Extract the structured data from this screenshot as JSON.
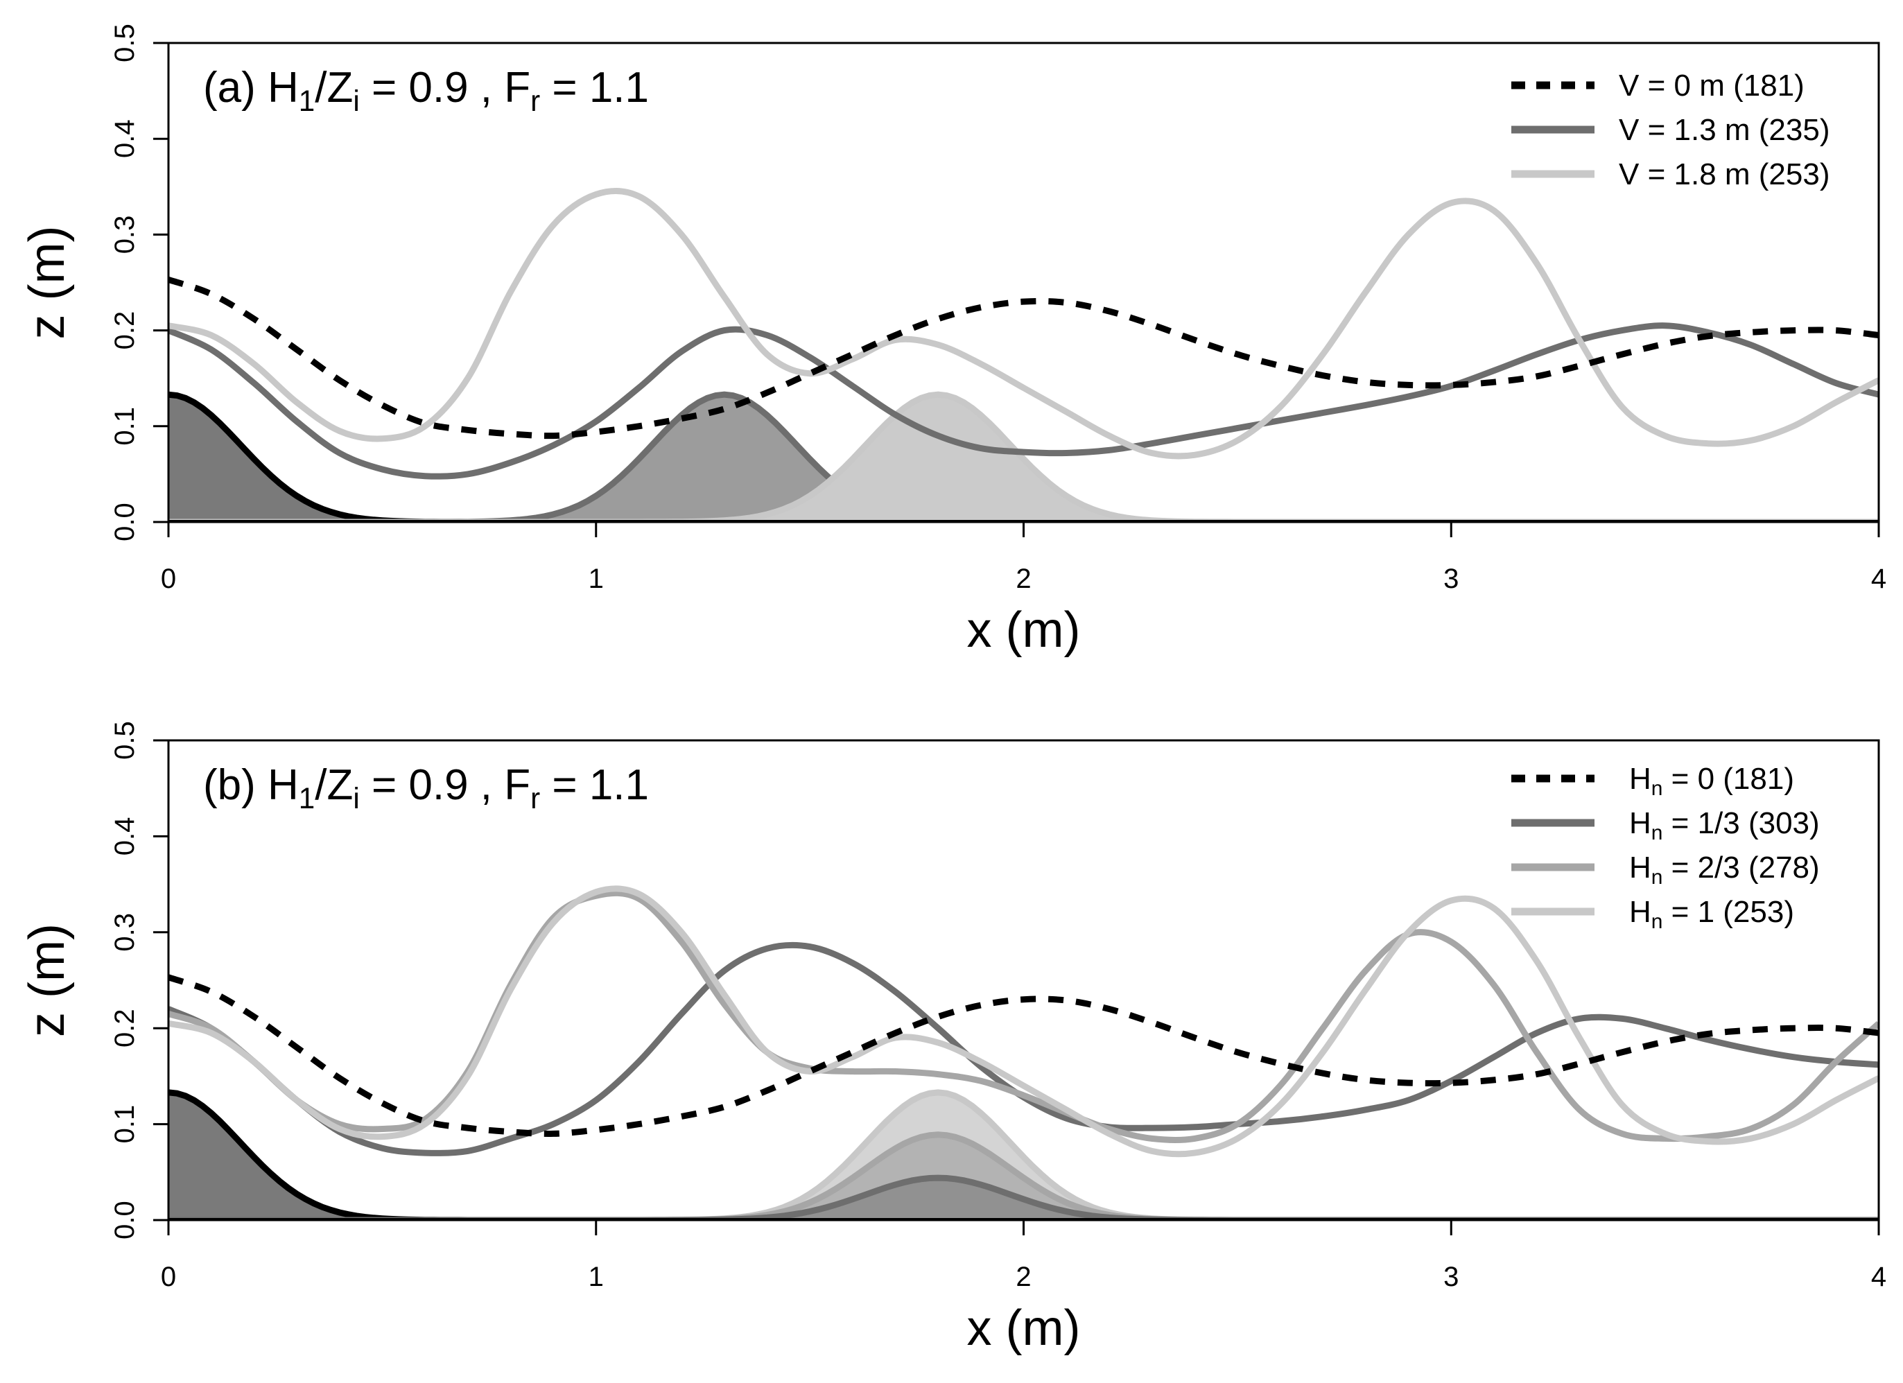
{
  "chart_data": [
    {
      "type": "line",
      "panel_label": "(a)",
      "title_parts": [
        "(a) H",
        "1",
        "/Z",
        "i",
        " = 0.9 , F",
        "r",
        " = 1.1"
      ],
      "xlabel": "x (m)",
      "ylabel": "z (m)",
      "xlim": [
        0,
        4
      ],
      "ylim": [
        0,
        0.5
      ],
      "xticks": [
        0,
        1,
        2,
        3,
        4
      ],
      "yticks": [
        0.0,
        0.1,
        0.2,
        0.3,
        0.4,
        0.5
      ],
      "ytick_labels": [
        "0.0",
        "0.1",
        "0.2",
        "0.3",
        "0.4",
        "0.5"
      ],
      "grid": false,
      "legend_position": "top-right",
      "colors": {
        "black": "#000000",
        "dark": "#6e6e6e",
        "mid": "#a6a6a6",
        "light": "#c8c8c8",
        "fill_black": "#7a7a7a",
        "fill_dark": "#9c9c9c",
        "fill_light": "#cbcbcb"
      },
      "topography": [
        {
          "name": "hill-x0",
          "x_center": 0.0,
          "height": 0.133,
          "width": 0.25,
          "fill": "#7a7a7a",
          "stroke": "#000000"
        },
        {
          "name": "hill-x1.3",
          "x_center": 1.3,
          "height": 0.133,
          "width": 0.25,
          "fill": "#9c9c9c",
          "stroke": "#6e6e6e"
        },
        {
          "name": "hill-x1.8",
          "x_center": 1.8,
          "height": 0.133,
          "width": 0.25,
          "fill": "#cbcbcb",
          "stroke": "#c8c8c8"
        }
      ],
      "series": [
        {
          "legend_label": [
            "V = 0 m (181)"
          ],
          "color": "#000000",
          "dashed": true,
          "x": [
            0,
            0.1,
            0.2,
            0.3,
            0.4,
            0.5,
            0.6,
            0.7,
            0.8,
            0.9,
            1.0,
            1.1,
            1.2,
            1.3,
            1.4,
            1.5,
            1.6,
            1.7,
            1.8,
            1.9,
            2.0,
            2.1,
            2.2,
            2.3,
            2.4,
            2.5,
            2.6,
            2.7,
            2.8,
            2.9,
            3.0,
            3.1,
            3.2,
            3.3,
            3.4,
            3.5,
            3.6,
            3.7,
            3.8,
            3.9,
            4.0
          ],
          "y": [
            0.253,
            0.238,
            0.212,
            0.18,
            0.148,
            0.122,
            0.103,
            0.096,
            0.092,
            0.09,
            0.094,
            0.1,
            0.108,
            0.118,
            0.135,
            0.155,
            0.175,
            0.195,
            0.212,
            0.224,
            0.23,
            0.229,
            0.22,
            0.206,
            0.19,
            0.175,
            0.163,
            0.153,
            0.146,
            0.143,
            0.143,
            0.146,
            0.152,
            0.163,
            0.175,
            0.186,
            0.194,
            0.198,
            0.2,
            0.2,
            0.195
          ]
        },
        {
          "legend_label": [
            "V = 1.3 m (235)"
          ],
          "color": "#6e6e6e",
          "dashed": false,
          "x": [
            0,
            0.1,
            0.2,
            0.3,
            0.4,
            0.5,
            0.6,
            0.7,
            0.8,
            0.9,
            1.0,
            1.1,
            1.2,
            1.3,
            1.4,
            1.5,
            1.6,
            1.7,
            1.8,
            1.9,
            2.0,
            2.1,
            2.2,
            2.3,
            2.4,
            2.5,
            2.6,
            2.7,
            2.8,
            2.9,
            3.0,
            3.1,
            3.2,
            3.3,
            3.4,
            3.5,
            3.6,
            3.7,
            3.8,
            3.9,
            4.0
          ],
          "y": [
            0.2,
            0.18,
            0.145,
            0.105,
            0.072,
            0.055,
            0.048,
            0.05,
            0.062,
            0.08,
            0.105,
            0.14,
            0.178,
            0.2,
            0.195,
            0.172,
            0.142,
            0.112,
            0.09,
            0.077,
            0.073,
            0.072,
            0.075,
            0.082,
            0.09,
            0.098,
            0.106,
            0.114,
            0.122,
            0.131,
            0.142,
            0.158,
            0.175,
            0.19,
            0.2,
            0.205,
            0.198,
            0.185,
            0.165,
            0.145,
            0.133
          ]
        },
        {
          "legend_label": [
            "V = 1.8 m (253)"
          ],
          "color": "#c8c8c8",
          "dashed": false,
          "x": [
            0,
            0.1,
            0.2,
            0.3,
            0.4,
            0.5,
            0.6,
            0.7,
            0.8,
            0.9,
            1.0,
            1.1,
            1.2,
            1.3,
            1.4,
            1.5,
            1.6,
            1.7,
            1.8,
            1.9,
            2.0,
            2.1,
            2.2,
            2.3,
            2.4,
            2.5,
            2.6,
            2.7,
            2.8,
            2.9,
            3.0,
            3.1,
            3.2,
            3.3,
            3.4,
            3.5,
            3.6,
            3.7,
            3.8,
            3.9,
            4.0
          ],
          "y": [
            0.205,
            0.195,
            0.165,
            0.125,
            0.095,
            0.087,
            0.1,
            0.15,
            0.24,
            0.31,
            0.342,
            0.34,
            0.3,
            0.235,
            0.175,
            0.155,
            0.17,
            0.19,
            0.185,
            0.165,
            0.14,
            0.115,
            0.09,
            0.072,
            0.07,
            0.085,
            0.12,
            0.175,
            0.24,
            0.3,
            0.333,
            0.325,
            0.27,
            0.19,
            0.12,
            0.09,
            0.082,
            0.085,
            0.1,
            0.125,
            0.148
          ]
        }
      ]
    },
    {
      "type": "line",
      "panel_label": "(b)",
      "title_parts": [
        "(b) H",
        "1",
        "/Z",
        "i",
        " = 0.9 , F",
        "r",
        " = 1.1"
      ],
      "xlabel": "x (m)",
      "ylabel": "z (m)",
      "xlim": [
        0,
        4
      ],
      "ylim": [
        0,
        0.5
      ],
      "xticks": [
        0,
        1,
        2,
        3,
        4
      ],
      "yticks": [
        0.0,
        0.1,
        0.2,
        0.3,
        0.4,
        0.5
      ],
      "ytick_labels": [
        "0.0",
        "0.1",
        "0.2",
        "0.3",
        "0.4",
        "0.5"
      ],
      "grid": false,
      "legend_position": "top-right",
      "colors": {
        "black": "#000000",
        "dark": "#6e6e6e",
        "mid": "#a6a6a6",
        "light": "#c8c8c8"
      },
      "topography": [
        {
          "name": "hill-x0",
          "x_center": 0.0,
          "height": 0.133,
          "width": 0.25,
          "fill": "#7a7a7a",
          "stroke": "#000000"
        },
        {
          "name": "hill-hn1",
          "x_center": 1.8,
          "height": 0.133,
          "width": 0.25,
          "fill": "#d4d4d4",
          "stroke": "#c8c8c8"
        },
        {
          "name": "hill-hn2-3",
          "x_center": 1.8,
          "height": 0.089,
          "width": 0.25,
          "fill": "#b3b3b3",
          "stroke": "#a6a6a6"
        },
        {
          "name": "hill-hn1-3",
          "x_center": 1.8,
          "height": 0.044,
          "width": 0.25,
          "fill": "#919191",
          "stroke": "#6e6e6e"
        }
      ],
      "series": [
        {
          "legend_label": [
            "H",
            "n",
            "  = 0 (181)"
          ],
          "color": "#000000",
          "dashed": true,
          "x": [
            0,
            0.1,
            0.2,
            0.3,
            0.4,
            0.5,
            0.6,
            0.7,
            0.8,
            0.9,
            1.0,
            1.1,
            1.2,
            1.3,
            1.4,
            1.5,
            1.6,
            1.7,
            1.8,
            1.9,
            2.0,
            2.1,
            2.2,
            2.3,
            2.4,
            2.5,
            2.6,
            2.7,
            2.8,
            2.9,
            3.0,
            3.1,
            3.2,
            3.3,
            3.4,
            3.5,
            3.6,
            3.7,
            3.8,
            3.9,
            4.0
          ],
          "y": [
            0.253,
            0.238,
            0.212,
            0.18,
            0.148,
            0.122,
            0.103,
            0.096,
            0.092,
            0.09,
            0.094,
            0.1,
            0.108,
            0.118,
            0.135,
            0.155,
            0.175,
            0.195,
            0.212,
            0.224,
            0.23,
            0.229,
            0.22,
            0.206,
            0.19,
            0.175,
            0.163,
            0.153,
            0.146,
            0.143,
            0.143,
            0.146,
            0.152,
            0.163,
            0.175,
            0.186,
            0.194,
            0.198,
            0.2,
            0.2,
            0.195
          ]
        },
        {
          "legend_label": [
            "H",
            "n",
            "  = 1/3 (303)"
          ],
          "color": "#6e6e6e",
          "dashed": false,
          "x": [
            0,
            0.1,
            0.2,
            0.3,
            0.4,
            0.5,
            0.6,
            0.7,
            0.8,
            0.9,
            1.0,
            1.1,
            1.2,
            1.3,
            1.4,
            1.5,
            1.6,
            1.7,
            1.8,
            1.9,
            2.0,
            2.1,
            2.2,
            2.3,
            2.4,
            2.5,
            2.6,
            2.7,
            2.8,
            2.9,
            3.0,
            3.1,
            3.2,
            3.3,
            3.4,
            3.5,
            3.6,
            3.7,
            3.8,
            3.9,
            4.0
          ],
          "y": [
            0.22,
            0.2,
            0.165,
            0.125,
            0.092,
            0.075,
            0.07,
            0.072,
            0.085,
            0.1,
            0.125,
            0.165,
            0.215,
            0.26,
            0.283,
            0.285,
            0.268,
            0.238,
            0.2,
            0.16,
            0.128,
            0.106,
            0.097,
            0.096,
            0.097,
            0.1,
            0.103,
            0.108,
            0.115,
            0.125,
            0.145,
            0.17,
            0.195,
            0.21,
            0.21,
            0.2,
            0.188,
            0.178,
            0.17,
            0.165,
            0.162
          ]
        },
        {
          "legend_label": [
            "H",
            "n",
            "  = 2/3 (278)"
          ],
          "color": "#a6a6a6",
          "dashed": false,
          "x": [
            0,
            0.1,
            0.2,
            0.3,
            0.4,
            0.5,
            0.6,
            0.7,
            0.8,
            0.9,
            1.0,
            1.1,
            1.2,
            1.3,
            1.4,
            1.5,
            1.6,
            1.7,
            1.8,
            1.9,
            2.0,
            2.1,
            2.2,
            2.3,
            2.4,
            2.5,
            2.6,
            2.7,
            2.8,
            2.9,
            3.0,
            3.1,
            3.2,
            3.3,
            3.4,
            3.5,
            3.6,
            3.7,
            3.8,
            3.9,
            4.0
          ],
          "y": [
            0.215,
            0.2,
            0.165,
            0.125,
            0.1,
            0.095,
            0.105,
            0.155,
            0.245,
            0.315,
            0.338,
            0.335,
            0.29,
            0.225,
            0.175,
            0.158,
            0.155,
            0.155,
            0.152,
            0.145,
            0.13,
            0.112,
            0.095,
            0.085,
            0.085,
            0.1,
            0.14,
            0.2,
            0.26,
            0.298,
            0.29,
            0.245,
            0.175,
            0.115,
            0.09,
            0.085,
            0.087,
            0.095,
            0.12,
            0.165,
            0.205
          ]
        },
        {
          "legend_label": [
            "H",
            "n",
            "  = 1 (253)"
          ],
          "color": "#c8c8c8",
          "dashed": false,
          "x": [
            0,
            0.1,
            0.2,
            0.3,
            0.4,
            0.5,
            0.6,
            0.7,
            0.8,
            0.9,
            1.0,
            1.1,
            1.2,
            1.3,
            1.4,
            1.5,
            1.6,
            1.7,
            1.8,
            1.9,
            2.0,
            2.1,
            2.2,
            2.3,
            2.4,
            2.5,
            2.6,
            2.7,
            2.8,
            2.9,
            3.0,
            3.1,
            3.2,
            3.3,
            3.4,
            3.5,
            3.6,
            3.7,
            3.8,
            3.9,
            4.0
          ],
          "y": [
            0.205,
            0.195,
            0.165,
            0.125,
            0.095,
            0.087,
            0.1,
            0.15,
            0.24,
            0.31,
            0.342,
            0.34,
            0.3,
            0.235,
            0.175,
            0.155,
            0.17,
            0.19,
            0.185,
            0.165,
            0.14,
            0.115,
            0.09,
            0.072,
            0.07,
            0.085,
            0.12,
            0.175,
            0.24,
            0.3,
            0.333,
            0.325,
            0.27,
            0.19,
            0.12,
            0.09,
            0.082,
            0.085,
            0.1,
            0.125,
            0.148
          ]
        }
      ]
    }
  ]
}
